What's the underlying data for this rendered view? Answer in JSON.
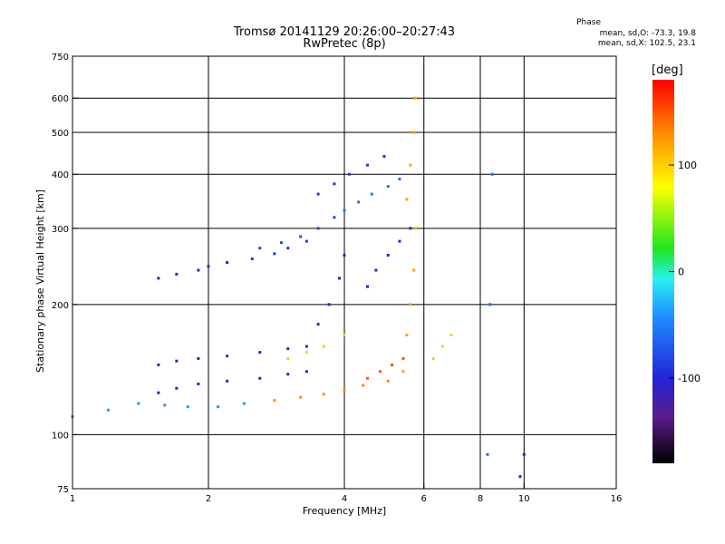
{
  "chart_data": {
    "type": "scatter",
    "title": "Tromsø 20141129 20:26:00–20:27:43",
    "subtitle": "RwPretec (8p)",
    "xlabel": "Frequency [MHz]",
    "ylabel": "Stationary phase Virtual Height [km]",
    "xscale": "log",
    "yscale": "log",
    "xlim": [
      1,
      16
    ],
    "ylim": [
      75,
      750
    ],
    "xticks": [
      1,
      2,
      4,
      6,
      8,
      10,
      16
    ],
    "yticks": [
      75,
      100,
      200,
      300,
      400,
      500,
      600,
      750
    ],
    "grid_x": [
      2,
      4,
      6,
      8,
      10
    ],
    "grid_y": [
      100,
      200,
      300,
      400,
      500,
      600
    ],
    "grid": true,
    "colorbar": {
      "label": "[deg]",
      "range": [
        -180,
        180
      ],
      "ticks": [
        100,
        0,
        -100
      ]
    },
    "phase_stats": {
      "header": "Phase",
      "o_line": "mean, sd,O: -73.3, 19.8",
      "x_line": "mean, sd,X: 102.5, 23.1"
    },
    "traces": [
      {
        "x": [
          1.0,
          1.2,
          1.4,
          1.6,
          1.8,
          2.1,
          2.4
        ],
        "y": [
          110,
          114,
          118,
          117,
          116,
          116,
          118
        ],
        "phase": -40
      },
      {
        "x": [
          1.55,
          1.7,
          1.9,
          2.2,
          2.6,
          3.0,
          3.3
        ],
        "y": [
          125,
          128,
          131,
          133,
          135,
          138,
          140
        ],
        "phase": -110
      },
      {
        "x": [
          1.55,
          1.7,
          1.9,
          2.2,
          2.6,
          3.0
        ],
        "y": [
          145,
          148,
          150,
          152,
          155,
          158
        ],
        "phase": -120
      },
      {
        "x": [
          1.55,
          1.7,
          1.9,
          2.0,
          2.2
        ],
        "y": [
          230,
          235,
          240,
          245,
          250
        ],
        "phase": -100
      },
      {
        "x": [
          2.0,
          2.2,
          2.5,
          2.8,
          3.0,
          3.3
        ],
        "y": [
          245,
          250,
          255,
          262,
          270,
          280
        ],
        "phase": -90
      },
      {
        "x": [
          2.6,
          2.9,
          3.2,
          3.5,
          3.8
        ],
        "y": [
          270,
          278,
          287,
          300,
          318
        ],
        "phase": -80
      },
      {
        "x": [
          2.8,
          3.2,
          3.6,
          4.0,
          4.4,
          5.0
        ],
        "y": [
          120,
          122,
          124,
          127,
          130,
          133
        ],
        "phase": 130
      },
      {
        "x": [
          3.0,
          3.3,
          3.6,
          4.0
        ],
        "y": [
          150,
          155,
          160,
          170
        ],
        "phase": 100
      },
      {
        "x": [
          3.3,
          3.5,
          3.7,
          3.9,
          4.0
        ],
        "y": [
          160,
          180,
          200,
          230,
          260
        ],
        "phase": -120
      },
      {
        "x": [
          3.5,
          3.8,
          4.1,
          4.5,
          4.9
        ],
        "y": [
          360,
          380,
          400,
          420,
          440
        ],
        "phase": -90
      },
      {
        "x": [
          4.0,
          4.3,
          4.6,
          5.0,
          5.3
        ],
        "y": [
          330,
          345,
          360,
          375,
          390
        ],
        "phase": -60
      },
      {
        "x": [
          4.5,
          4.8,
          5.1,
          5.4
        ],
        "y": [
          135,
          140,
          145,
          150
        ],
        "phase": 150
      },
      {
        "x": [
          4.5,
          4.7,
          5.0,
          5.3,
          5.6
        ],
        "y": [
          220,
          240,
          260,
          280,
          300
        ],
        "phase": -100
      },
      {
        "x": [
          5.4,
          5.5,
          5.6,
          5.7,
          5.75
        ],
        "y": [
          140,
          170,
          200,
          240,
          300
        ],
        "phase": 120
      },
      {
        "x": [
          5.5,
          5.6,
          5.7,
          5.75
        ],
        "y": [
          350,
          420,
          500,
          600
        ],
        "phase": 120
      },
      {
        "x": [
          6.3,
          6.6,
          6.9
        ],
        "y": [
          150,
          160,
          170
        ],
        "phase": 100
      },
      {
        "x": [
          8.3,
          8.4,
          8.5
        ],
        "y": [
          90,
          200,
          400
        ],
        "phase": -60
      },
      {
        "x": [
          9.8,
          10.0
        ],
        "y": [
          80,
          90
        ],
        "phase": -100
      }
    ]
  }
}
